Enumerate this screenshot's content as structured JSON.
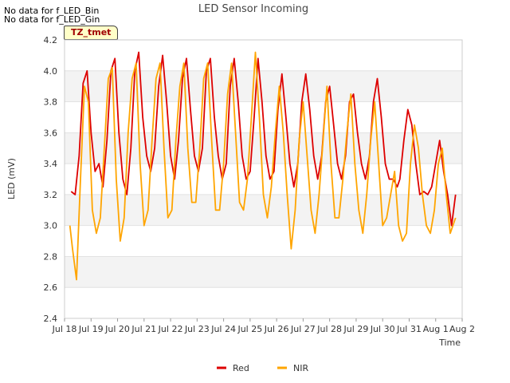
{
  "notices": [
    "No data for f_LED_Bin",
    "No data for f_LED_Gin"
  ],
  "tag_label": "TZ_tmet",
  "chart_data": {
    "type": "line",
    "title": "LED Sensor Incoming",
    "xlabel": "Time",
    "ylabel": "LED (mV)",
    "ylim": [
      2.4,
      4.2
    ],
    "yticks": [
      2.4,
      2.6,
      2.8,
      3.0,
      3.2,
      3.4,
      3.6,
      3.8,
      4.0,
      4.2
    ],
    "ytick_labels": [
      "2.4",
      "2.6",
      "2.8",
      "3.0",
      "3.2",
      "3.4",
      "3.6",
      "3.8",
      "4.0",
      "4.2"
    ],
    "xlim": [
      0,
      15
    ],
    "xticks": [
      0,
      1,
      2,
      3,
      4,
      5,
      6,
      7,
      8,
      9,
      10,
      11,
      12,
      13,
      14,
      15
    ],
    "xtick_labels": [
      "Jul 18",
      "Jul 19",
      "Jul 20",
      "Jul 21",
      "Jul 22",
      "Jul 23",
      "Jul 24",
      "Jul 25",
      "Jul 26",
      "Jul 27",
      "Jul 28",
      "Jul 29",
      "Jul 30",
      "Jul 31",
      "Aug 1",
      "Aug 2"
    ],
    "grid": true,
    "legend_position": "bottom-center",
    "series": [
      {
        "name": "Red",
        "color": "#dd0000",
        "x": [
          0.25,
          0.4,
          0.55,
          0.7,
          0.85,
          1.0,
          1.15,
          1.3,
          1.45,
          1.6,
          1.75,
          1.9,
          2.05,
          2.2,
          2.35,
          2.5,
          2.65,
          2.8,
          2.95,
          3.1,
          3.25,
          3.4,
          3.55,
          3.7,
          3.85,
          4.0,
          4.15,
          4.3,
          4.45,
          4.6,
          4.75,
          4.9,
          5.05,
          5.2,
          5.35,
          5.5,
          5.65,
          5.8,
          5.95,
          6.1,
          6.25,
          6.4,
          6.55,
          6.7,
          6.85,
          7.0,
          7.15,
          7.3,
          7.45,
          7.6,
          7.75,
          7.9,
          8.05,
          8.2,
          8.35,
          8.5,
          8.65,
          8.8,
          8.95,
          9.1,
          9.25,
          9.4,
          9.55,
          9.7,
          9.85,
          10.0,
          10.15,
          10.3,
          10.45,
          10.6,
          10.75,
          10.9,
          11.05,
          11.2,
          11.35,
          11.5,
          11.65,
          11.8,
          11.95,
          12.1,
          12.25,
          12.4,
          12.55,
          12.65,
          12.8,
          12.95,
          13.1,
          13.25,
          13.4,
          13.55,
          13.7,
          13.85,
          14.0,
          14.15,
          14.3,
          14.45,
          14.6,
          14.75
        ],
        "y": [
          3.22,
          3.2,
          3.45,
          3.92,
          4.0,
          3.6,
          3.35,
          3.4,
          3.25,
          3.55,
          4.0,
          4.08,
          3.6,
          3.3,
          3.2,
          3.5,
          4.0,
          4.12,
          3.7,
          3.45,
          3.35,
          3.5,
          3.9,
          4.1,
          3.8,
          3.45,
          3.3,
          3.55,
          3.95,
          4.08,
          3.75,
          3.45,
          3.35,
          3.5,
          4.0,
          4.08,
          3.7,
          3.45,
          3.3,
          3.4,
          3.9,
          4.08,
          3.8,
          3.45,
          3.3,
          3.35,
          3.7,
          4.08,
          3.8,
          3.45,
          3.3,
          3.35,
          3.75,
          3.98,
          3.7,
          3.4,
          3.25,
          3.4,
          3.8,
          3.98,
          3.75,
          3.45,
          3.3,
          3.45,
          3.8,
          3.9,
          3.65,
          3.4,
          3.3,
          3.45,
          3.8,
          3.85,
          3.6,
          3.4,
          3.3,
          3.45,
          3.8,
          3.95,
          3.7,
          3.4,
          3.3,
          3.3,
          3.25,
          3.3,
          3.55,
          3.75,
          3.65,
          3.4,
          3.2,
          3.22,
          3.2,
          3.25,
          3.4,
          3.55,
          3.35,
          3.2,
          3.0,
          3.2
        ]
      },
      {
        "name": "NIR",
        "color": "#ffa500",
        "x": [
          0.2,
          0.3,
          0.45,
          0.6,
          0.75,
          0.9,
          1.05,
          1.2,
          1.35,
          1.5,
          1.65,
          1.8,
          1.95,
          2.1,
          2.25,
          2.4,
          2.55,
          2.7,
          2.85,
          3.0,
          3.15,
          3.3,
          3.45,
          3.6,
          3.75,
          3.9,
          4.05,
          4.2,
          4.35,
          4.5,
          4.65,
          4.8,
          4.95,
          5.1,
          5.25,
          5.4,
          5.55,
          5.7,
          5.85,
          6.0,
          6.15,
          6.3,
          6.45,
          6.6,
          6.75,
          6.9,
          7.05,
          7.2,
          7.35,
          7.5,
          7.65,
          7.8,
          7.95,
          8.1,
          8.25,
          8.4,
          8.55,
          8.7,
          8.85,
          9.0,
          9.15,
          9.3,
          9.45,
          9.6,
          9.75,
          9.9,
          10.05,
          10.2,
          10.35,
          10.5,
          10.65,
          10.8,
          10.95,
          11.1,
          11.25,
          11.4,
          11.55,
          11.7,
          11.85,
          12.0,
          12.15,
          12.3,
          12.45,
          12.6,
          12.75,
          12.9,
          13.05,
          13.2,
          13.35,
          13.5,
          13.65,
          13.8,
          13.95,
          14.1,
          14.25,
          14.4,
          14.55,
          14.75
        ],
        "y": [
          3.0,
          2.85,
          2.65,
          3.3,
          3.9,
          3.8,
          3.1,
          2.95,
          3.05,
          3.5,
          3.95,
          4.02,
          3.3,
          2.9,
          3.05,
          3.6,
          3.95,
          4.05,
          3.4,
          3.0,
          3.1,
          3.55,
          3.95,
          4.05,
          3.5,
          3.05,
          3.1,
          3.55,
          3.9,
          4.05,
          3.5,
          3.15,
          3.15,
          3.5,
          3.95,
          4.05,
          3.55,
          3.1,
          3.1,
          3.4,
          3.85,
          4.05,
          3.6,
          3.15,
          3.1,
          3.3,
          3.7,
          4.12,
          3.7,
          3.2,
          3.05,
          3.25,
          3.6,
          3.9,
          3.6,
          3.2,
          2.85,
          3.1,
          3.55,
          3.8,
          3.45,
          3.1,
          2.95,
          3.2,
          3.55,
          3.9,
          3.4,
          3.05,
          3.05,
          3.3,
          3.6,
          3.85,
          3.4,
          3.1,
          2.95,
          3.2,
          3.55,
          3.8,
          3.4,
          3.0,
          3.05,
          3.2,
          3.35,
          3.0,
          2.9,
          2.95,
          3.4,
          3.65,
          3.5,
          3.2,
          3.0,
          2.95,
          3.1,
          3.4,
          3.5,
          3.2,
          2.95,
          3.05
        ]
      }
    ]
  }
}
